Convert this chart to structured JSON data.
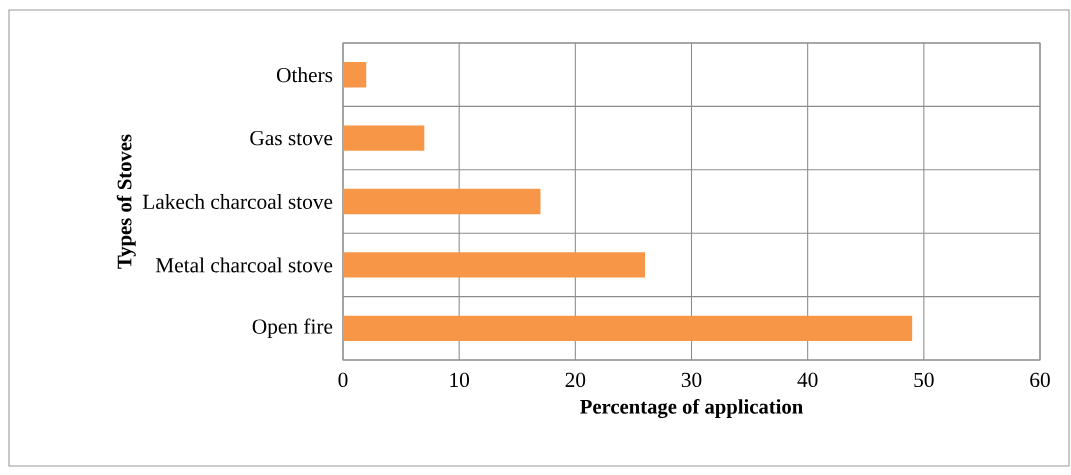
{
  "chart_data": {
    "type": "bar",
    "orientation": "horizontal",
    "xlabel": "Percentage of application",
    "ylabel": "Types of Stoves",
    "categories": [
      "Others",
      "Gas stove",
      "Lakech charcoal stove",
      "Metal charcoal stove",
      "Open fire"
    ],
    "values": [
      2,
      7,
      17,
      26,
      49
    ],
    "color": "#f79646",
    "xlim": [
      0,
      60
    ],
    "xticks": [
      0,
      10,
      20,
      30,
      40,
      50,
      60
    ],
    "grid": true
  }
}
